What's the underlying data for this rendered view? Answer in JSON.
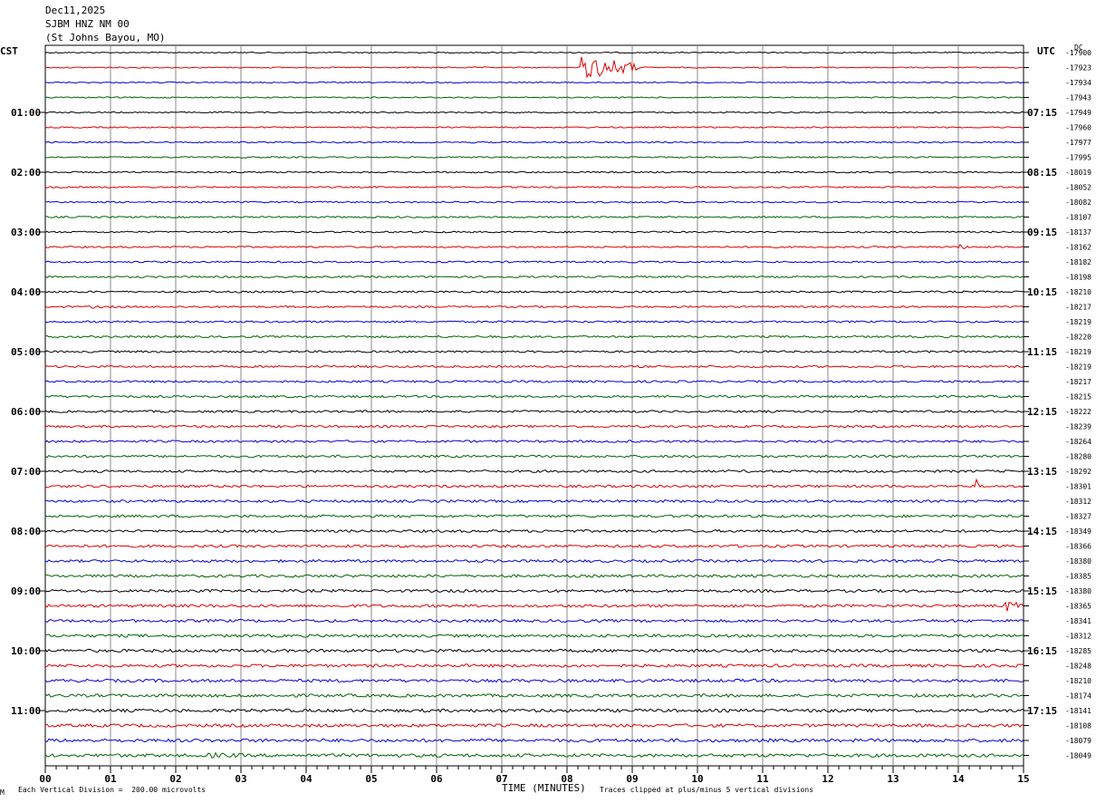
{
  "header": {
    "date": "Dec11,2025",
    "station": "SJBM HNZ NM 00",
    "location": "(St Johns Bayou, MO)"
  },
  "left_timezone": "CST",
  "right_timezone": "UTC",
  "dc_label": "DC",
  "footer": {
    "vertical_division": "Each Vertical Division =  200.00 microvolts",
    "clip_note": "Traces clipped at plus/minus 5 vertical divisions",
    "marker": "M"
  },
  "trace_colors": [
    "#000000",
    "#e00000",
    "#0000dd",
    "#006400"
  ],
  "chart_data": {
    "type": "line",
    "title": "",
    "xlabel": "TIME (MINUTES)",
    "xlim": [
      0,
      15
    ],
    "x_ticks": [
      "00",
      "01",
      "02",
      "03",
      "04",
      "05",
      "06",
      "07",
      "08",
      "09",
      "10",
      "11",
      "12",
      "13",
      "14",
      "15"
    ],
    "left_hour_labels": [
      "01:00",
      "02:00",
      "03:00",
      "04:00",
      "05:00",
      "06:00",
      "07:00",
      "08:00",
      "09:00",
      "10:00",
      "11:00"
    ],
    "right_hour_labels": [
      "07:15",
      "08:15",
      "09:15",
      "10:15",
      "11:15",
      "12:15",
      "13:15",
      "14:15",
      "15:15",
      "16:15",
      "17:15"
    ],
    "row_dc_values": [
      "-17900",
      "-17923",
      "-17934",
      "-17943",
      "-17949",
      "-17960",
      "-17977",
      "-17995",
      "-18019",
      "-18052",
      "-18082",
      "-18107",
      "-18137",
      "-18162",
      "-18182",
      "-18198",
      "-18210",
      "-18217",
      "-18219",
      "-18220",
      "-18219",
      "-18219",
      "-18217",
      "-18215",
      "-18222",
      "-18239",
      "-18264",
      "-18280",
      "-18292",
      "-18301",
      "-18312",
      "-18327",
      "-18349",
      "-18366",
      "-18380",
      "-18385",
      "-18380",
      "-18365",
      "-18341",
      "-18312",
      "-18285",
      "-18248",
      "-18210",
      "-18174",
      "-18141",
      "-18108",
      "-18079",
      "-18049"
    ],
    "rows_per_hour": 4,
    "minutes_per_row": 15,
    "events": [
      {
        "row": 1,
        "minute": 8.2,
        "duration": 0.9,
        "amplitude": 13
      },
      {
        "row": 13,
        "minute": 14.0,
        "duration": 0.2,
        "amplitude": 3
      },
      {
        "row": 17,
        "minute": 0.7,
        "duration": 0.3,
        "amplitude": 2
      },
      {
        "row": 29,
        "minute": 14.25,
        "duration": 0.08,
        "amplitude": 10
      },
      {
        "row": 34,
        "minute": 13.8,
        "duration": 0.4,
        "amplitude": 2
      },
      {
        "row": 37,
        "minute": 14.7,
        "duration": 0.3,
        "amplitude": 7
      },
      {
        "row": 41,
        "minute": 6.3,
        "duration": 0.8,
        "amplitude": 2
      },
      {
        "row": 47,
        "minute": 2.5,
        "duration": 1.0,
        "amplitude": 3
      }
    ]
  }
}
